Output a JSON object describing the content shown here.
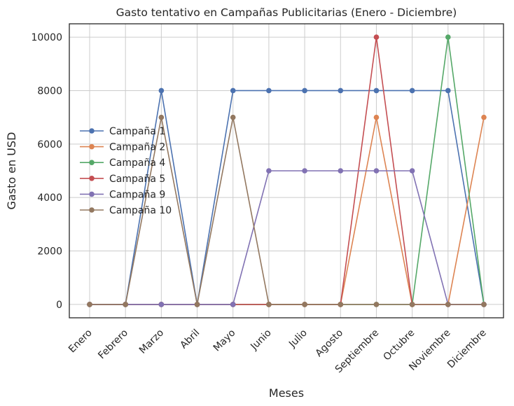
{
  "chart_data": {
    "type": "line",
    "title": "Gasto tentativo en Campañas Publicitarias (Enero - Diciembre)",
    "xlabel": "Meses",
    "ylabel": "Gasto en USD",
    "categories": [
      "Enero",
      "Febrero",
      "Marzo",
      "Abril",
      "Mayo",
      "Junio",
      "Julio",
      "Agosto",
      "Septiembre",
      "Octubre",
      "Noviembre",
      "Diciembre"
    ],
    "yticks": [
      0,
      2000,
      4000,
      6000,
      8000,
      10000
    ],
    "ylim": [
      -500,
      10500
    ],
    "grid": true,
    "legend_position": "center-left",
    "series": [
      {
        "name": "Campaña 1",
        "color": "#4c72b0",
        "values": [
          0,
          0,
          8000,
          0,
          8000,
          8000,
          8000,
          8000,
          8000,
          8000,
          8000,
          0
        ]
      },
      {
        "name": "Campaña 2",
        "color": "#dd8452",
        "values": [
          0,
          0,
          0,
          0,
          0,
          0,
          0,
          0,
          7000,
          0,
          0,
          7000
        ]
      },
      {
        "name": "Campaña 4",
        "color": "#55a868",
        "values": [
          0,
          0,
          0,
          0,
          0,
          0,
          0,
          0,
          0,
          0,
          10000,
          0
        ]
      },
      {
        "name": "Campaña 5",
        "color": "#c44e52",
        "values": [
          0,
          0,
          0,
          0,
          0,
          0,
          0,
          0,
          10000,
          0,
          0,
          0
        ]
      },
      {
        "name": "Campaña 9",
        "color": "#8172b3",
        "values": [
          0,
          0,
          0,
          0,
          0,
          5000,
          5000,
          5000,
          5000,
          5000,
          0,
          0
        ]
      },
      {
        "name": "Campaña 10",
        "color": "#937860",
        "values": [
          0,
          0,
          7000,
          0,
          7000,
          0,
          0,
          0,
          0,
          0,
          0,
          0
        ]
      }
    ]
  }
}
